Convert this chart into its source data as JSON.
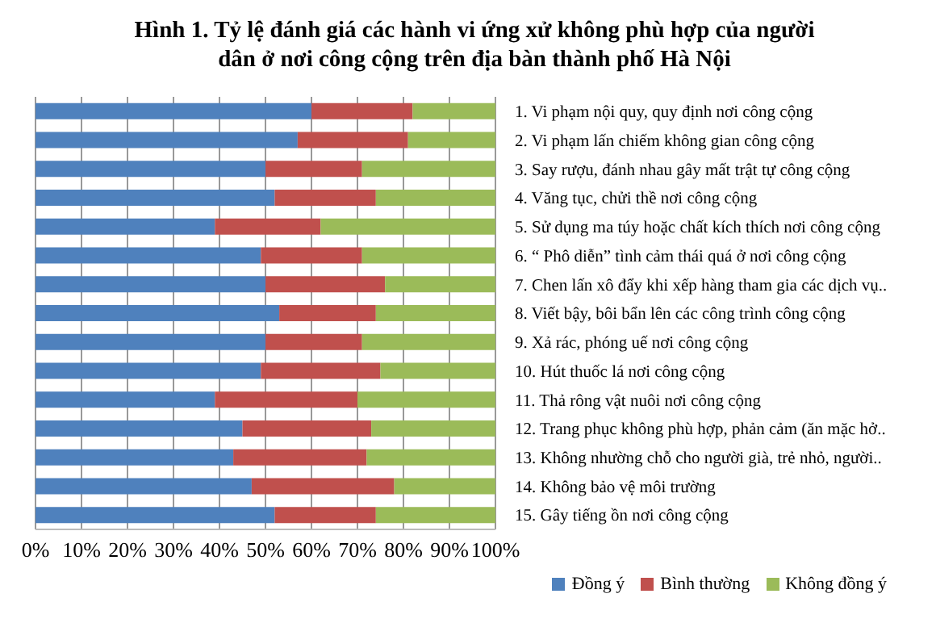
{
  "chart_data": {
    "type": "bar",
    "orientation": "horizontal",
    "stacked": true,
    "title": "Hình 1. Tỷ lệ đánh giá các hành vi ứng xử không phù hợp của người dân ở nơi công cộng trên địa bàn thành phố Hà Nội",
    "categories": [
      "1. Vi phạm nội quy, quy định nơi công cộng",
      "2. Vi phạm lấn chiếm không gian công cộng",
      "3. Say rượu, đánh nhau gây mất trật tự công cộng",
      "4. Văng tục, chửi thề nơi công cộng",
      "5.  Sử dụng ma túy hoặc chất kích thích nơi công cộng",
      "6. “ Phô diễn” tình cảm thái quá ở nơi công cộng",
      "7. Chen lấn xô đẩy khi xếp hàng tham gia các dịch vụ..",
      "8. Viết bậy, bôi bẩn lên các công trình công cộng",
      "9. Xả rác, phóng uế nơi công cộng",
      "10. Hút thuốc lá nơi công cộng",
      "11. Thả rông vật nuôi nơi công cộng",
      "12. Trang phục không phù hợp, phản cảm (ăn mặc hở..",
      "13. Không nhường chỗ cho người già, trẻ nhỏ, người..",
      "14. Không bảo vệ môi trường",
      "15. Gây tiếng ồn nơi công cộng"
    ],
    "series": [
      {
        "name": "Đồng ý",
        "color": "#4f81bd",
        "values": [
          60,
          57,
          50,
          52,
          39,
          49,
          50,
          53,
          50,
          49,
          39,
          45,
          43,
          47,
          52
        ]
      },
      {
        "name": "Bình  thường",
        "color": "#c0504d",
        "values": [
          22,
          24,
          21,
          22,
          23,
          22,
          26,
          21,
          21,
          26,
          31,
          28,
          29,
          31,
          22
        ]
      },
      {
        "name": "Không đồng ý",
        "color": "#9bbb59",
        "values": [
          18,
          19,
          29,
          26,
          38,
          29,
          24,
          26,
          29,
          25,
          30,
          27,
          28,
          22,
          26
        ]
      }
    ],
    "xlim": [
      0,
      100
    ],
    "xticks": [
      {
        "value": 0,
        "label": "0%"
      },
      {
        "value": 10,
        "label": "10%"
      },
      {
        "value": 20,
        "label": "20%"
      },
      {
        "value": 30,
        "label": "30%"
      },
      {
        "value": 40,
        "label": "40%"
      },
      {
        "value": 50,
        "label": "50%"
      },
      {
        "value": 60,
        "label": "60%"
      },
      {
        "value": 70,
        "label": "70%"
      },
      {
        "value": 80,
        "label": "80%"
      },
      {
        "value": 90,
        "label": "90%"
      },
      {
        "value": 100,
        "label": "100%"
      }
    ],
    "grid": "x",
    "legend": "bottom"
  }
}
